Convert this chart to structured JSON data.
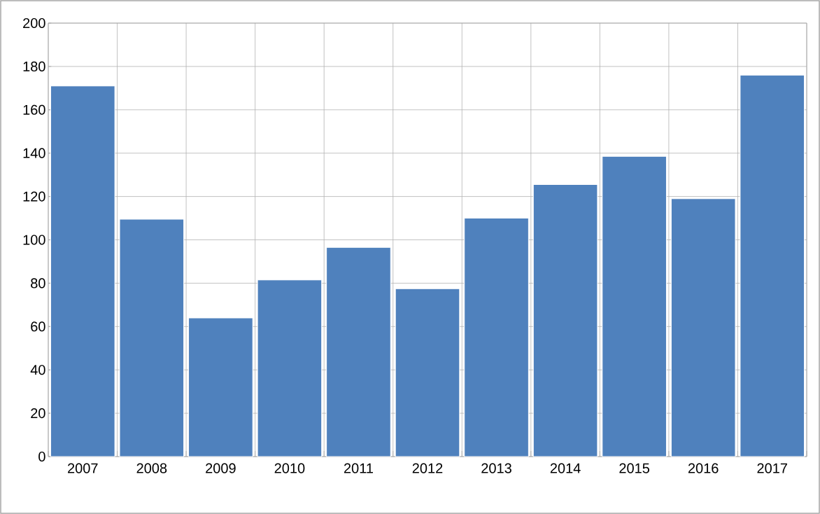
{
  "chart_data": {
    "type": "bar",
    "categories": [
      "2007",
      "2008",
      "2009",
      "2010",
      "2011",
      "2012",
      "2013",
      "2014",
      "2015",
      "2016",
      "2017"
    ],
    "values": [
      171,
      109.5,
      64,
      81.5,
      96.5,
      77.5,
      110,
      125.5,
      138.5,
      119,
      176
    ],
    "color": "#4f81bd",
    "ylim": [
      0,
      200
    ],
    "yticks": [
      0,
      20,
      40,
      60,
      80,
      100,
      120,
      140,
      160,
      180,
      200
    ],
    "grid": true
  }
}
